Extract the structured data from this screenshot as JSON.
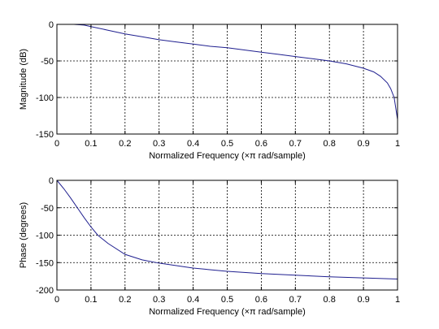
{
  "colors": {
    "line": "#1f1f8f",
    "axes": "#000000",
    "grid": "#000000",
    "background": "#ffffff"
  },
  "chart_data": [
    {
      "type": "line",
      "xlabel": "Normalized Frequency  (×π rad/sample)",
      "ylabel": "Magnitude (dB)",
      "xlim": [
        0,
        1
      ],
      "ylim": [
        -150,
        0
      ],
      "xticks": [
        0,
        0.1,
        0.2,
        0.3,
        0.4,
        0.5,
        0.6,
        0.7,
        0.8,
        0.9,
        1
      ],
      "yticks": [
        0,
        -50,
        -100,
        -150
      ],
      "xticklabels": [
        "0",
        "0.1",
        "0.2",
        "0.3",
        "0.4",
        "0.5",
        "0.6",
        "0.7",
        "0.8",
        "0.9",
        "1"
      ],
      "yticklabels": [
        "0",
        "-50",
        "-100",
        "-150"
      ],
      "grid": true,
      "grid_style": "dotted",
      "series": [
        {
          "x": [
            0,
            0.02,
            0.05,
            0.08,
            0.1,
            0.15,
            0.2,
            0.25,
            0.3,
            0.35,
            0.4,
            0.45,
            0.5,
            0.55,
            0.6,
            0.65,
            0.7,
            0.75,
            0.8,
            0.85,
            0.9,
            0.93,
            0.95,
            0.97,
            0.98,
            0.99,
            1.0
          ],
          "y": [
            0,
            0,
            0,
            -1,
            -3,
            -8,
            -13,
            -17,
            -21,
            -24,
            -27,
            -30,
            -32,
            -35,
            -38,
            -41,
            -44,
            -47,
            -50,
            -54,
            -60,
            -65,
            -71,
            -80,
            -88,
            -100,
            -130
          ]
        }
      ]
    },
    {
      "type": "line",
      "xlabel": "Normalized Frequency  (×π rad/sample)",
      "ylabel": "Phase (degrees)",
      "xlim": [
        0,
        1
      ],
      "ylim": [
        -200,
        0
      ],
      "xticks": [
        0,
        0.1,
        0.2,
        0.3,
        0.4,
        0.5,
        0.6,
        0.7,
        0.8,
        0.9,
        1
      ],
      "yticks": [
        0,
        -50,
        -100,
        -150,
        -200
      ],
      "xticklabels": [
        "0",
        "0.1",
        "0.2",
        "0.3",
        "0.4",
        "0.5",
        "0.6",
        "0.7",
        "0.8",
        "0.9",
        "1"
      ],
      "yticklabels": [
        "0",
        "-50",
        "-100",
        "-150",
        "-200"
      ],
      "grid": true,
      "grid_style": "dotted",
      "series": [
        {
          "x": [
            0,
            0.02,
            0.04,
            0.06,
            0.08,
            0.1,
            0.12,
            0.15,
            0.2,
            0.25,
            0.3,
            0.4,
            0.5,
            0.6,
            0.7,
            0.8,
            0.9,
            1.0
          ],
          "y": [
            0,
            -15,
            -32,
            -50,
            -68,
            -85,
            -100,
            -115,
            -135,
            -145,
            -151,
            -160,
            -166,
            -170,
            -173,
            -176,
            -178,
            -180
          ]
        }
      ]
    }
  ]
}
